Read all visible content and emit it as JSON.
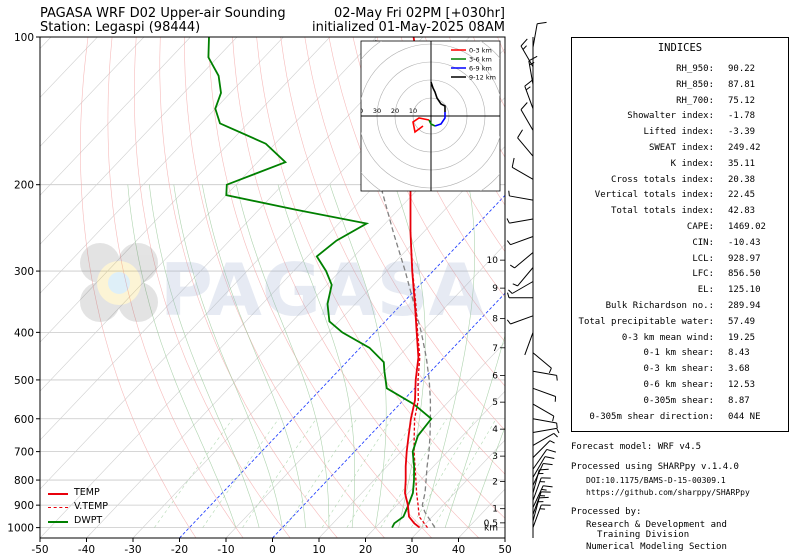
{
  "header": {
    "title_left": "PAGASA WRF D02 Upper-air Sounding",
    "station": "Station: Legaspi (98444)",
    "valid_time": "02-May Fri 02PM [+030hr]",
    "init_time": "initialized 01-May-2025 08AM"
  },
  "watermark": "PAGASA",
  "chart_data": {
    "type": "skew-t",
    "x_axis": {
      "label": "",
      "range": [
        -50,
        50
      ],
      "ticks": [
        -50,
        -40,
        -30,
        -20,
        -10,
        0,
        10,
        20,
        30,
        40,
        50
      ]
    },
    "y_axis": {
      "label": "",
      "scale": "log",
      "range": [
        1050,
        100
      ],
      "ticks": [
        1000,
        900,
        800,
        700,
        600,
        500,
        400,
        300,
        200,
        100
      ]
    },
    "height_ticks_km": [
      {
        "label": "km",
        "p": 1000
      },
      {
        "label": "0.5",
        "p": 978
      },
      {
        "label": "1",
        "p": 915
      },
      {
        "label": "2",
        "p": 805
      },
      {
        "label": "3",
        "p": 715
      },
      {
        "label": "4",
        "p": 630
      },
      {
        "label": "5",
        "p": 555
      },
      {
        "label": "6",
        "p": 490
      },
      {
        "label": "7",
        "p": 430
      },
      {
        "label": "8",
        "p": 375
      },
      {
        "label": "9",
        "p": 325
      },
      {
        "label": "10",
        "p": 285
      }
    ],
    "series": [
      {
        "name": "TEMP",
        "color": "#e8000b",
        "style": "solid",
        "points": [
          [
            1000,
            29.5
          ],
          [
            980,
            27.5
          ],
          [
            950,
            25.0
          ],
          [
            900,
            22.4
          ],
          [
            850,
            19.3
          ],
          [
            800,
            16.8
          ],
          [
            750,
            14.0
          ],
          [
            700,
            11.2
          ],
          [
            650,
            8.4
          ],
          [
            600,
            5.4
          ],
          [
            550,
            2.5
          ],
          [
            500,
            -1.5
          ],
          [
            450,
            -5.5
          ],
          [
            400,
            -11.0
          ],
          [
            350,
            -17.2
          ],
          [
            300,
            -24.5
          ],
          [
            250,
            -32.8
          ],
          [
            200,
            -42.5
          ],
          [
            175,
            -48.2
          ],
          [
            150,
            -54.5
          ],
          [
            130,
            -60.0
          ],
          [
            115,
            -65.0
          ],
          [
            100,
            -72.0
          ]
        ]
      },
      {
        "name": "V.TEMP",
        "color": "#e8000b",
        "style": "dashed",
        "points": [
          [
            1000,
            31.2
          ],
          [
            950,
            27.2
          ],
          [
            900,
            24.6
          ],
          [
            850,
            21.8
          ],
          [
            800,
            19.0
          ],
          [
            750,
            16.0
          ],
          [
            700,
            12.8
          ],
          [
            650,
            9.6
          ],
          [
            600,
            6.2
          ],
          [
            550,
            3.2
          ],
          [
            500,
            -1.0
          ],
          [
            450,
            -5.2
          ],
          [
            400,
            -10.8
          ],
          [
            350,
            -17.0
          ],
          [
            300,
            -24.4
          ],
          [
            250,
            -32.8
          ]
        ]
      },
      {
        "name": "DWPT",
        "color": "#008000",
        "style": "solid",
        "points": [
          [
            1000,
            23.6
          ],
          [
            980,
            23.2
          ],
          [
            950,
            23.8
          ],
          [
            900,
            22.5
          ],
          [
            850,
            21.0
          ],
          [
            800,
            18.6
          ],
          [
            750,
            15.8
          ],
          [
            700,
            12.5
          ],
          [
            650,
            10.4
          ],
          [
            600,
            9.8
          ],
          [
            560,
            3.0
          ],
          [
            520,
            -6.0
          ],
          [
            480,
            -10.0
          ],
          [
            460,
            -12.0
          ],
          [
            430,
            -18.0
          ],
          [
            400,
            -27.0
          ],
          [
            380,
            -32.0
          ],
          [
            350,
            -36.0
          ],
          [
            320,
            -39.0
          ],
          [
            300,
            -43.0
          ],
          [
            280,
            -48.0
          ],
          [
            260,
            -47.0
          ],
          [
            240,
            -44.0
          ],
          [
            225,
            -62.0
          ],
          [
            210,
            -80.0
          ],
          [
            200,
            -82.0
          ],
          [
            180,
            -74.0
          ],
          [
            165,
            -82.0
          ],
          [
            150,
            -96.0
          ],
          [
            140,
            -100.0
          ],
          [
            130,
            -102.0
          ],
          [
            120,
            -106.0
          ],
          [
            110,
            -112.0
          ],
          [
            100,
            -116.0
          ]
        ]
      },
      {
        "name": "Parcel",
        "color": "#808080",
        "style": "dashed",
        "points": [
          [
            1000,
            32.8
          ],
          [
            930,
            27.5
          ],
          [
            900,
            25.5
          ],
          [
            850,
            23.6
          ],
          [
            800,
            21.2
          ],
          [
            750,
            18.6
          ],
          [
            700,
            16.0
          ],
          [
            650,
            13.0
          ],
          [
            600,
            9.6
          ],
          [
            550,
            5.8
          ],
          [
            500,
            1.4
          ],
          [
            450,
            -3.8
          ],
          [
            400,
            -10.0
          ],
          [
            350,
            -17.4
          ],
          [
            300,
            -26.0
          ],
          [
            250,
            -36.5
          ],
          [
            200,
            -49.0
          ],
          [
            150,
            -65.0
          ],
          [
            125,
            -72.0
          ],
          [
            100,
            -80.0
          ]
        ]
      }
    ],
    "legend": [
      "TEMP",
      "V.TEMP",
      "DWPT"
    ],
    "hodograph": {
      "rings_label": [
        "50",
        "40",
        "30",
        "20",
        "10"
      ],
      "legend": [
        {
          "name": "0-3 km",
          "color": "#ff0000"
        },
        {
          "name": "3-6 km",
          "color": "#008000"
        },
        {
          "name": "6-9 km",
          "color": "#0000ff"
        },
        {
          "name": "9-12 km",
          "color": "#000000"
        }
      ],
      "segments": [
        {
          "name": "0-3 km",
          "uv": [
            [
              -4,
              -5
            ],
            [
              -8,
              -8
            ],
            [
              -9,
              -3
            ],
            [
              -6,
              -1
            ],
            [
              -1,
              -2
            ]
          ]
        },
        {
          "name": "3-6 km",
          "uv": [
            [
              -1,
              -2
            ],
            [
              0,
              -4
            ],
            [
              2,
              -5
            ]
          ]
        },
        {
          "name": "6-9 km",
          "uv": [
            [
              2,
              -5
            ],
            [
              5,
              -4
            ],
            [
              7,
              -1
            ],
            [
              7,
              2
            ]
          ]
        },
        {
          "name": "9-12 km",
          "uv": [
            [
              7,
              2
            ],
            [
              7,
              5
            ],
            [
              5,
              6
            ],
            [
              3,
              9
            ],
            [
              2,
              12
            ],
            [
              1,
              14
            ],
            [
              0,
              17
            ]
          ]
        }
      ]
    },
    "wind_barbs": [
      {
        "p": 1000,
        "dir": 20,
        "spd": 18
      },
      {
        "p": 970,
        "dir": 15,
        "spd": 16
      },
      {
        "p": 940,
        "dir": 20,
        "spd": 17
      },
      {
        "p": 910,
        "dir": 25,
        "spd": 15
      },
      {
        "p": 880,
        "dir": 20,
        "spd": 17
      },
      {
        "p": 850,
        "dir": 15,
        "spd": 15
      },
      {
        "p": 820,
        "dir": 25,
        "spd": 13
      },
      {
        "p": 790,
        "dir": 30,
        "spd": 12
      },
      {
        "p": 760,
        "dir": 35,
        "spd": 10
      },
      {
        "p": 720,
        "dir": 45,
        "spd": 9
      },
      {
        "p": 680,
        "dir": 60,
        "spd": 8
      },
      {
        "p": 640,
        "dir": 80,
        "spd": 7
      },
      {
        "p": 600,
        "dir": 100,
        "spd": 7
      },
      {
        "p": 560,
        "dir": 120,
        "spd": 8
      },
      {
        "p": 520,
        "dir": 110,
        "spd": 7
      },
      {
        "p": 480,
        "dir": 100,
        "spd": 6
      },
      {
        "p": 440,
        "dir": 130,
        "spd": 5
      },
      {
        "p": 400,
        "dir": 200,
        "spd": 4
      },
      {
        "p": 370,
        "dir": 250,
        "spd": 5
      },
      {
        "p": 340,
        "dir": 270,
        "spd": 6
      },
      {
        "p": 315,
        "dir": 240,
        "spd": 8
      },
      {
        "p": 295,
        "dir": 220,
        "spd": 7
      },
      {
        "p": 275,
        "dir": 230,
        "spd": 6
      },
      {
        "p": 255,
        "dir": 250,
        "spd": 7
      },
      {
        "p": 235,
        "dir": 260,
        "spd": 8
      },
      {
        "p": 215,
        "dir": 280,
        "spd": 9
      },
      {
        "p": 195,
        "dir": 300,
        "spd": 10
      },
      {
        "p": 175,
        "dir": 320,
        "spd": 12
      },
      {
        "p": 155,
        "dir": 330,
        "spd": 14
      },
      {
        "p": 140,
        "dir": 340,
        "spd": 16
      },
      {
        "p": 125,
        "dir": 350,
        "spd": 17
      },
      {
        "p": 115,
        "dir": 330,
        "spd": 15
      },
      {
        "p": 105,
        "dir": 10,
        "spd": 12
      }
    ]
  },
  "indices": {
    "title": "INDICES",
    "rows": [
      {
        "label": "RH_950:",
        "value": "90.22"
      },
      {
        "label": "RH_850:",
        "value": "87.81"
      },
      {
        "label": "RH_700:",
        "value": "75.12"
      },
      {
        "label": "Showalter index:",
        "value": "-1.78"
      },
      {
        "label": "Lifted index:",
        "value": "-3.39"
      },
      {
        "label": "SWEAT index:",
        "value": "249.42"
      },
      {
        "label": "K index:",
        "value": "35.11"
      },
      {
        "label": "Cross totals index:",
        "value": "20.38"
      },
      {
        "label": "Vertical totals index:",
        "value": "22.45"
      },
      {
        "label": "Total totals index:",
        "value": "42.83"
      },
      {
        "label": "CAPE:",
        "value": "1469.02"
      },
      {
        "label": "CIN:",
        "value": "-10.43"
      },
      {
        "label": "LCL:",
        "value": "928.97"
      },
      {
        "label": "LFC:",
        "value": "856.50"
      },
      {
        "label": "EL:",
        "value": "125.10"
      },
      {
        "label": "Bulk Richardson no.:",
        "value": "289.94"
      },
      {
        "label": "Total precipitable water:",
        "value": "57.49"
      },
      {
        "label": "0-3 km mean wind:",
        "value": "19.25"
      },
      {
        "label": "0-1 km shear:",
        "value": "8.43"
      },
      {
        "label": "0-3 km shear:",
        "value": "3.68"
      },
      {
        "label": "0-6 km shear:",
        "value": "12.53"
      },
      {
        "label": "0-305m shear:",
        "value": "8.87"
      },
      {
        "label": "0-305m shear direction:",
        "value": "044 NE"
      }
    ]
  },
  "footer": {
    "model": "Forecast model: WRF v4.5",
    "processed": "Processed using SHARPpy v.1.4.0",
    "doi": "DOI:10.1175/BAMS-D-15-00309.1",
    "url": "https://github.com/sharppy/SHARPpy",
    "by": "Processed by:",
    "division_1": "Research & Development and",
    "division_2": "Training Division",
    "section": "Numerical Modeling Section"
  }
}
